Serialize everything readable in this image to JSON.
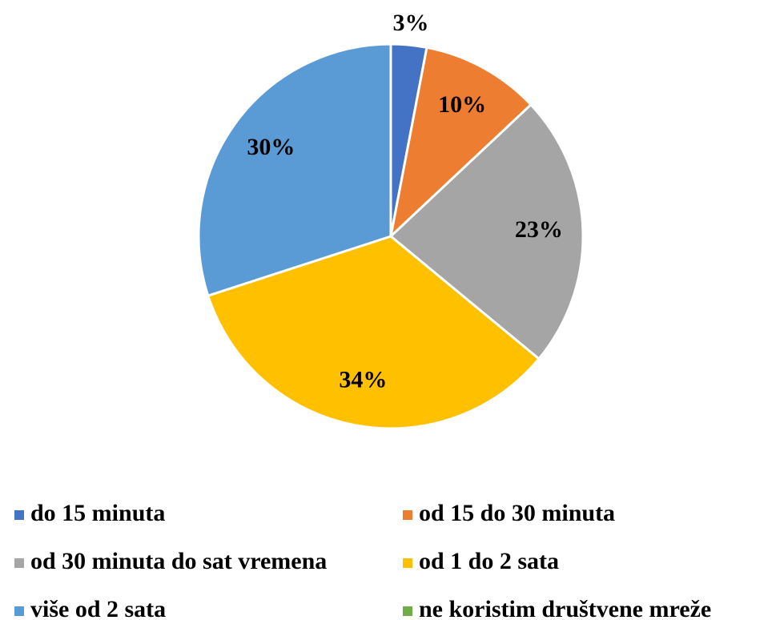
{
  "chart_data": {
    "type": "pie",
    "categories": [
      "do 15 minuta",
      "od 15 do 30 minuta",
      "od 30 minuta do sat vremena",
      "od 1 do 2 sata",
      "više od 2 sata",
      "ne koristim društvene mreže"
    ],
    "values": [
      3,
      10,
      23,
      34,
      30,
      0
    ],
    "value_labels": [
      "3%",
      "10%",
      "23%",
      "34%",
      "30%",
      null
    ],
    "colors": [
      "#4472c4",
      "#ed7d31",
      "#a5a5a5",
      "#ffc000",
      "#5b9bd5",
      "#70ad47"
    ],
    "legend": "bottom"
  }
}
